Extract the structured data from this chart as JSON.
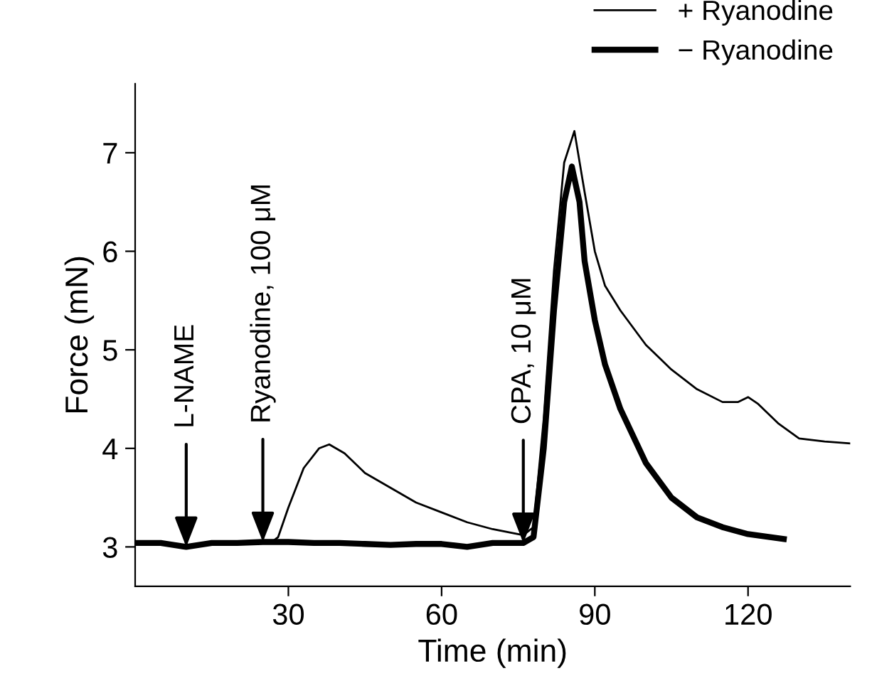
{
  "chart_data": {
    "type": "line",
    "xlabel": "Time (min)",
    "ylabel": "Force (mN)",
    "xlim": [
      0,
      140
    ],
    "ylim": [
      2.6,
      7.7
    ],
    "xticks": [
      30,
      60,
      90,
      120
    ],
    "yticks": [
      3,
      4,
      5,
      6,
      7
    ],
    "grid": false,
    "legend": "top right",
    "marker": "none",
    "line_style": "solid",
    "series": [
      {
        "name": "+ Ryanodine",
        "color": "#000000",
        "x": [
          0,
          5,
          10,
          15,
          20,
          25,
          27,
          28,
          30,
          33,
          36,
          38,
          41,
          45,
          50,
          55,
          60,
          65,
          70,
          76,
          78,
          80,
          82,
          84,
          86,
          88,
          90,
          92,
          95,
          100,
          105,
          110,
          115,
          118,
          120,
          122,
          126,
          130,
          135,
          140
        ],
        "values": [
          3.05,
          3.04,
          3.0,
          3.05,
          3.04,
          3.06,
          3.06,
          3.1,
          3.4,
          3.8,
          4.0,
          4.04,
          3.95,
          3.75,
          3.6,
          3.45,
          3.35,
          3.25,
          3.18,
          3.12,
          3.2,
          4.3,
          5.8,
          6.9,
          7.22,
          6.6,
          6.0,
          5.65,
          5.4,
          5.05,
          4.8,
          4.6,
          4.47,
          4.47,
          4.52,
          4.45,
          4.25,
          4.1,
          4.07,
          4.05
        ]
      },
      {
        "name": "− Ryanodine",
        "color": "#000000",
        "x": [
          0,
          5,
          10,
          15,
          20,
          25,
          30,
          35,
          40,
          45,
          50,
          55,
          60,
          65,
          70,
          76,
          78,
          80,
          82,
          84,
          85.5,
          87,
          88,
          90,
          92,
          95,
          100,
          105,
          110,
          115,
          120,
          127
        ],
        "values": [
          3.04,
          3.04,
          3.0,
          3.04,
          3.04,
          3.05,
          3.05,
          3.04,
          3.04,
          3.03,
          3.02,
          3.03,
          3.03,
          3.0,
          3.04,
          3.04,
          3.1,
          4.0,
          5.4,
          6.5,
          6.86,
          6.5,
          5.9,
          5.3,
          4.85,
          4.4,
          3.85,
          3.5,
          3.3,
          3.2,
          3.13,
          3.08
        ]
      }
    ],
    "annotations": [
      {
        "text": "L-NAME",
        "x": 10,
        "y": 3.0
      },
      {
        "text": "Ryanodine, 100 μM",
        "x": 25,
        "y": 3.05
      },
      {
        "text": "CPA, 10 μM",
        "x": 76,
        "y": 3.04
      }
    ]
  }
}
